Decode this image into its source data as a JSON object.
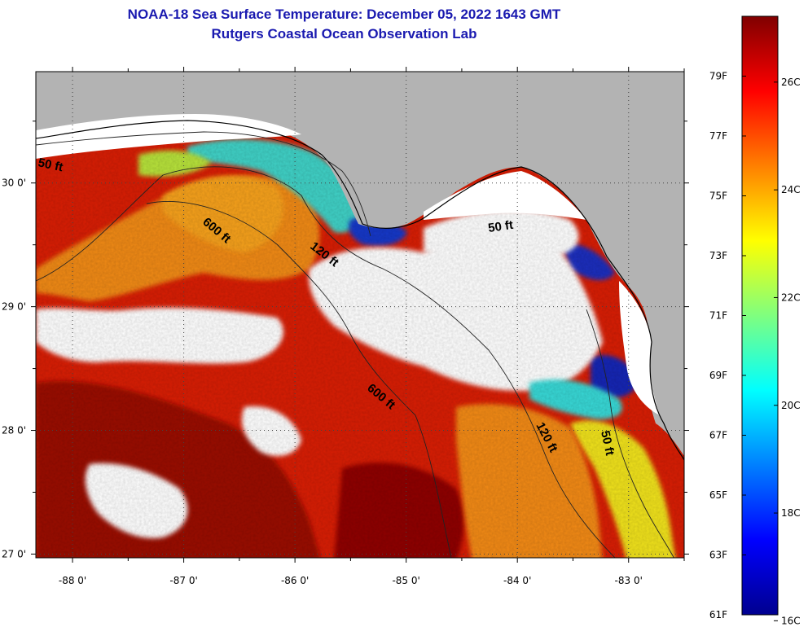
{
  "header": {
    "title": "NOAA-18 Sea Surface Temperature:  December 05, 2022 1643 GMT",
    "subtitle": "Rutgers Coastal Ocean Observation Lab"
  },
  "map": {
    "lon_range": [
      -88.33,
      -82.5
    ],
    "lat_range": [
      26.97,
      30.9
    ],
    "lon_ticks": [
      {
        "value": -88,
        "label": "-88 0'"
      },
      {
        "value": -87,
        "label": "-87 0'"
      },
      {
        "value": -86,
        "label": "-86 0'"
      },
      {
        "value": -85,
        "label": "-85 0'"
      },
      {
        "value": -84,
        "label": "-84 0'"
      },
      {
        "value": -83,
        "label": "-83 0'"
      }
    ],
    "lat_ticks": [
      {
        "value": 30,
        "label": "30 0'"
      },
      {
        "value": 29,
        "label": "29 0'"
      },
      {
        "value": 28,
        "label": "28 0'"
      },
      {
        "value": 27,
        "label": "27 0'"
      }
    ],
    "contour_labels": [
      "50 ft",
      "600 ft",
      "120 ft",
      "50 ft",
      "600 ft",
      "120 ft",
      "50 ft"
    ],
    "colors": {
      "land": "#b3b3b3",
      "cloud": "#ffffff",
      "warm": "#d81e05",
      "hot": "#8b0000"
    }
  },
  "colorbar": {
    "range_f": [
      61,
      81
    ],
    "fahrenheit_labels": [
      "79F",
      "77F",
      "75F",
      "73F",
      "71F",
      "69F",
      "67F",
      "65F",
      "63F",
      "61F"
    ],
    "celsius_labels": [
      "26C",
      "24C",
      "22C",
      "20C",
      "18C",
      "16C"
    ],
    "colormap": "jet"
  }
}
